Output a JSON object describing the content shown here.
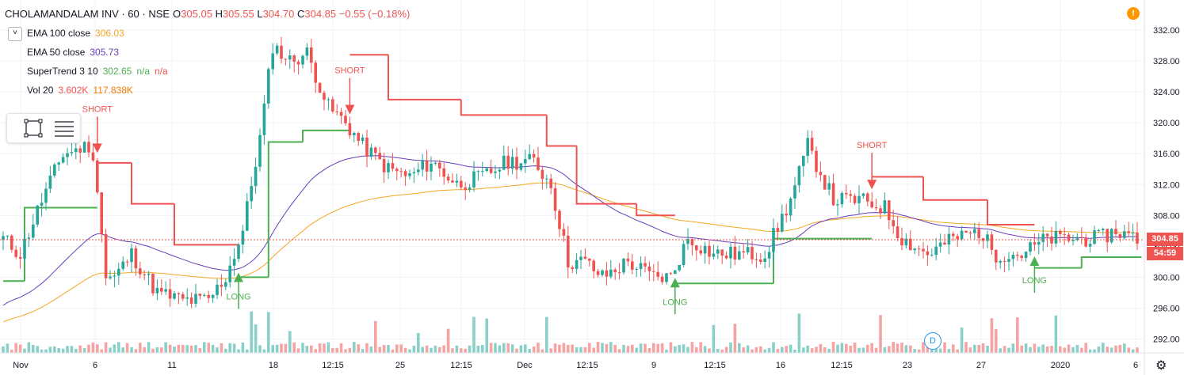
{
  "header": {
    "symbol": "CHOLAMANDALAM INV · 60 · NSE",
    "open_label": "O",
    "open": "305.05",
    "high_label": "H",
    "high": "305.55",
    "low_label": "L",
    "low": "304.70",
    "close_label": "C",
    "close": "304.85",
    "change": "−0.55 (−0.18%)"
  },
  "indicators": [
    {
      "name": "EMA 100 close",
      "values": [
        "306.03"
      ],
      "color": "#f5a623"
    },
    {
      "name": "EMA 50 close",
      "values": [
        "305.73"
      ],
      "color": "#6a3dbd"
    },
    {
      "name": "SuperTrend 3 10",
      "values": [
        "302.65",
        "n/a",
        "n/a"
      ],
      "colors": [
        "#4caf50",
        "#4caf50",
        "#ef5350"
      ]
    },
    {
      "name": "Vol 20",
      "values": [
        "3.602K",
        "117.838K"
      ],
      "colors": [
        "#ef5350",
        "#f57c00"
      ]
    }
  ],
  "collapse_symbol": "˅",
  "alert_symbol": "!",
  "current_price_badge": "304.85",
  "countdown_badge": "54:59",
  "event_marker": "D",
  "settings_symbol": "⚙",
  "colors": {
    "up": "#26a69a",
    "down": "#ef5350",
    "grid": "#f0f3fa",
    "text": "#131722",
    "supertrend_up": "#4caf50",
    "supertrend_down": "#ef5350",
    "ema100": "#f5a623",
    "ema50": "#6a3dbd",
    "vol_up": "#8ad0c8",
    "vol_down": "#f5a3a3"
  },
  "chart_data": {
    "type": "candlestick",
    "price_axis": {
      "min": 290,
      "max": 334,
      "ticks": [
        "332.00",
        "328.00",
        "324.00",
        "320.00",
        "316.00",
        "312.00",
        "308.00",
        "304.00",
        "300.00",
        "296.00",
        "292.00"
      ]
    },
    "time_axis_labels": [
      "Nov",
      "6",
      "11",
      "18",
      "12:15",
      "25",
      "12:15",
      "Dec",
      "12:15",
      "9",
      "12:15",
      "16",
      "12:15",
      "23",
      "27",
      "2020",
      "6"
    ],
    "last_price": 304.85,
    "signals": [
      {
        "type": "SHORT",
        "bar": 22,
        "price": 316.5
      },
      {
        "type": "LONG",
        "bar": 55,
        "price": 300.2
      },
      {
        "type": "SHORT",
        "bar": 81,
        "price": 321.5
      },
      {
        "type": "LONG",
        "bar": 157,
        "price": 299.5
      },
      {
        "type": "SHORT",
        "bar": 203,
        "price": 311.8
      },
      {
        "type": "LONG",
        "bar": 241,
        "price": 302.3
      }
    ],
    "supertrend": [
      {
        "from": 0,
        "to": 5,
        "value": 299.5,
        "dir": "up"
      },
      {
        "from": 5,
        "to": 11,
        "value": 309.0,
        "dir": "up"
      },
      {
        "from": 11,
        "to": 22,
        "value": 309.0,
        "dir": "up"
      },
      {
        "from": 22,
        "to": 30,
        "value": 314.8,
        "dir": "down"
      },
      {
        "from": 30,
        "to": 40,
        "value": 309.5,
        "dir": "down"
      },
      {
        "from": 40,
        "to": 55,
        "value": 304.2,
        "dir": "down"
      },
      {
        "from": 55,
        "to": 62,
        "value": 300.0,
        "dir": "up"
      },
      {
        "from": 62,
        "to": 70,
        "value": 317.5,
        "dir": "up"
      },
      {
        "from": 70,
        "to": 81,
        "value": 319.0,
        "dir": "up"
      },
      {
        "from": 81,
        "to": 90,
        "value": 328.8,
        "dir": "down"
      },
      {
        "from": 90,
        "to": 107,
        "value": 323.0,
        "dir": "down"
      },
      {
        "from": 107,
        "to": 127,
        "value": 321.0,
        "dir": "down"
      },
      {
        "from": 127,
        "to": 134,
        "value": 317.0,
        "dir": "down"
      },
      {
        "from": 134,
        "to": 148,
        "value": 309.5,
        "dir": "down"
      },
      {
        "from": 148,
        "to": 157,
        "value": 308.0,
        "dir": "down"
      },
      {
        "from": 157,
        "to": 180,
        "value": 299.2,
        "dir": "up"
      },
      {
        "from": 180,
        "to": 203,
        "value": 305.0,
        "dir": "up"
      },
      {
        "from": 203,
        "to": 215,
        "value": 313.0,
        "dir": "down"
      },
      {
        "from": 215,
        "to": 230,
        "value": 310.0,
        "dir": "down"
      },
      {
        "from": 230,
        "to": 241,
        "value": 306.8,
        "dir": "down"
      },
      {
        "from": 241,
        "to": 252,
        "value": 301.2,
        "dir": "up"
      },
      {
        "from": 252,
        "to": 266,
        "value": 302.6,
        "dir": "up"
      }
    ]
  }
}
